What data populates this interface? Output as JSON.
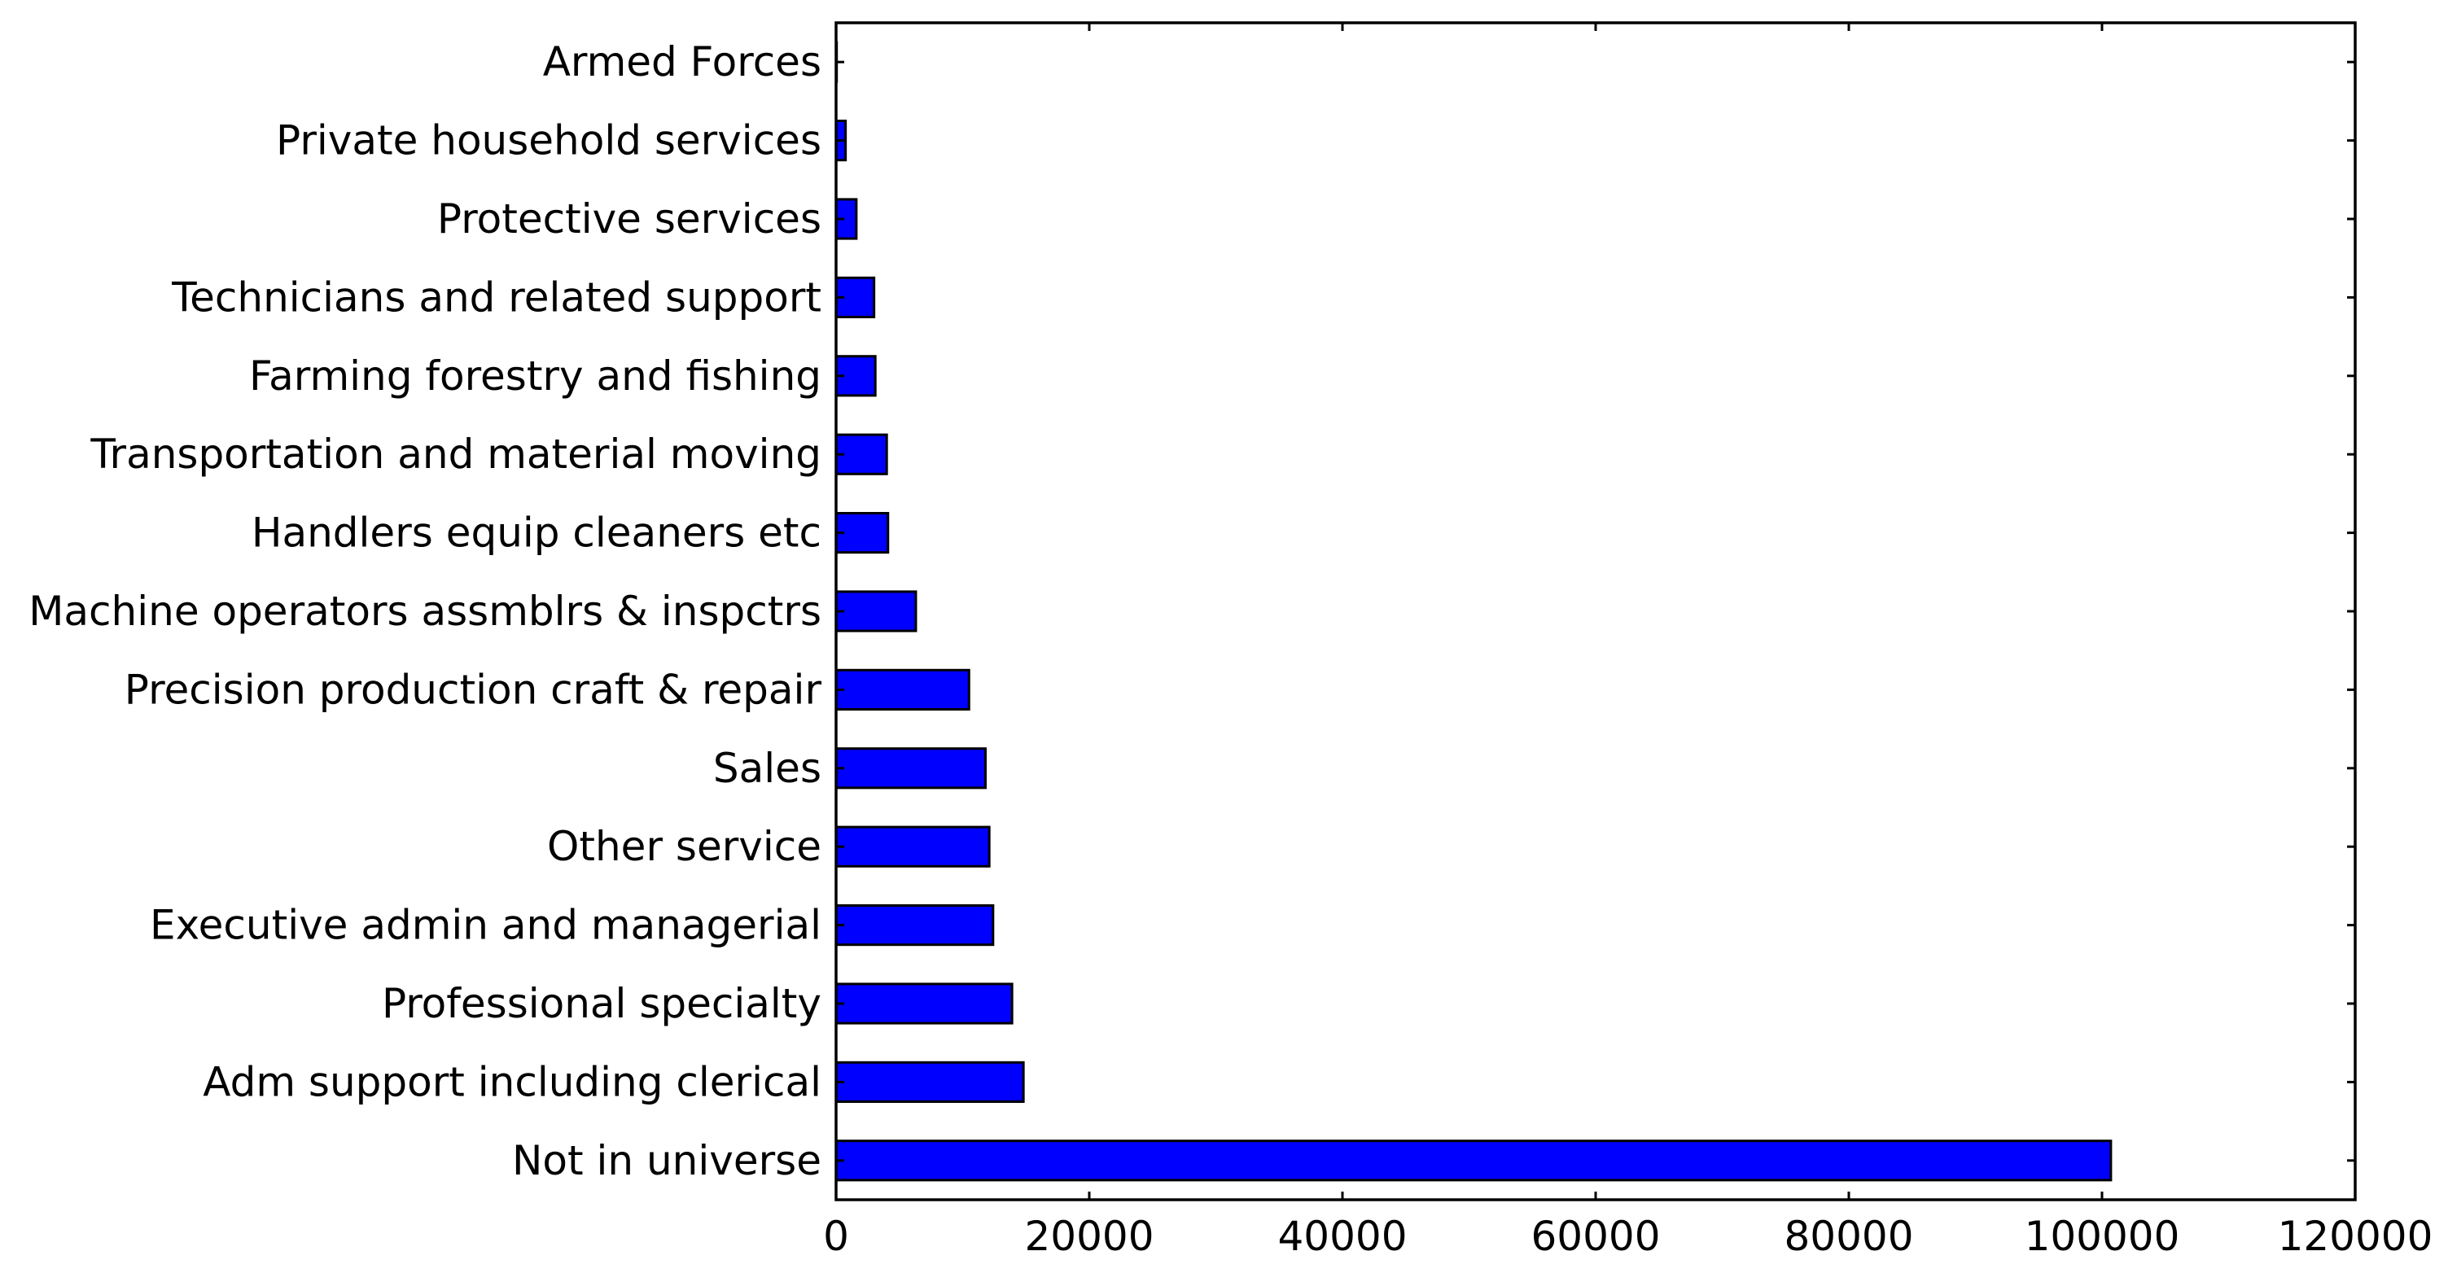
{
  "chart_data": {
    "type": "bar",
    "orientation": "horizontal",
    "categories": [
      "Not in universe",
      "Adm support including clerical",
      "Professional specialty",
      "Executive admin and managerial",
      "Other service",
      "Sales",
      "Precision production craft & repair",
      "Machine operators assmblrs & inspctrs",
      "Handlers equip cleaners etc ",
      "Transportation and material moving",
      "Farming forestry and fishing",
      "Technicians and related support",
      "Protective services",
      "Private household services",
      "Armed Forces"
    ],
    "values": [
      100700,
      14800,
      13900,
      12400,
      12100,
      11800,
      10500,
      6300,
      4100,
      4000,
      3100,
      3000,
      1600,
      750,
      45
    ],
    "xlim": [
      0,
      120000
    ],
    "xticks": [
      0,
      20000,
      40000,
      60000,
      80000,
      100000,
      120000
    ],
    "xtick_labels": [
      "0",
      "20000",
      "40000",
      "60000",
      "80000",
      "100000",
      "120000"
    ],
    "title": "",
    "xlabel": "",
    "ylabel": "",
    "grid": false,
    "bar_color": "#0000ff",
    "edge_color": "#000000"
  }
}
